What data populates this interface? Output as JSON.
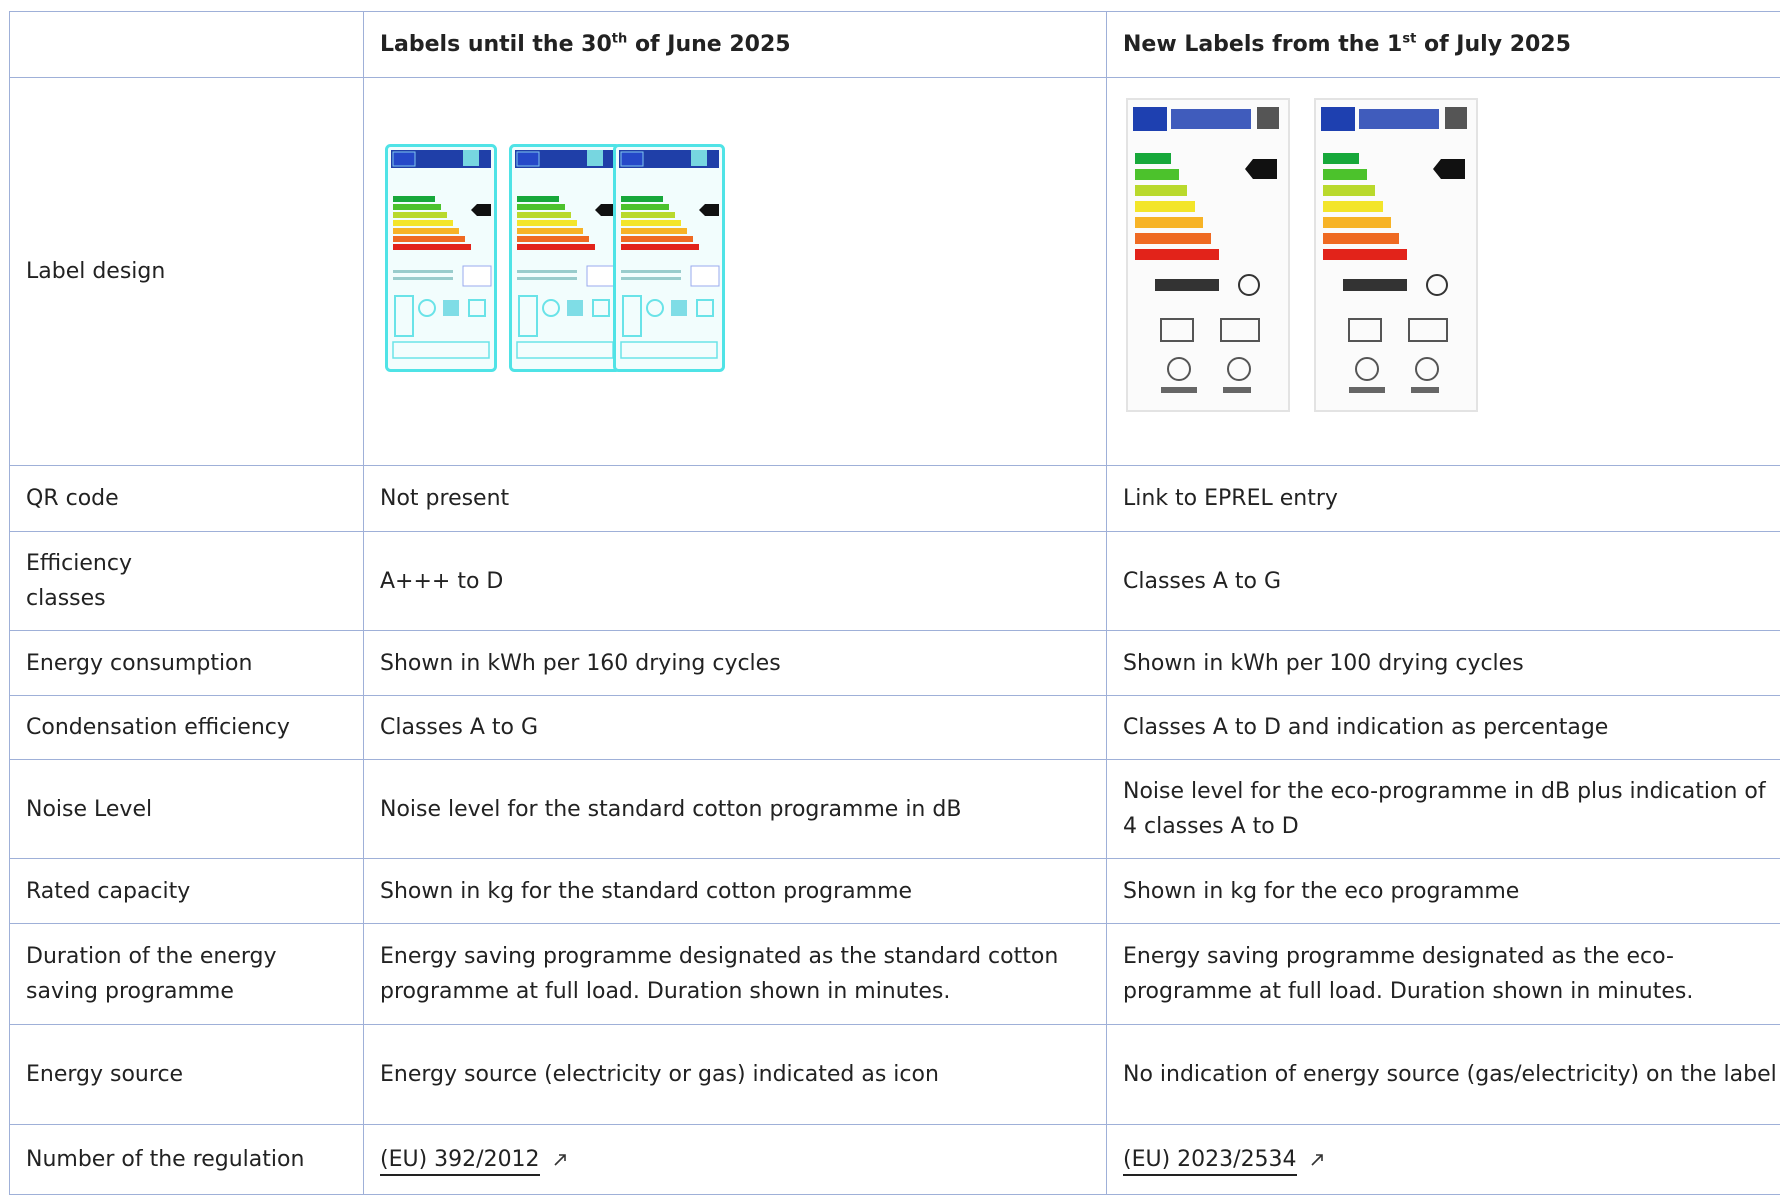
{
  "table": {
    "header": [
      {
        "before": "Labels until the 30",
        "sup": "th",
        "after": " of June 2025"
      },
      {
        "before": "New Labels from the 1",
        "sup": "st",
        "after": " of July 2025"
      }
    ],
    "rows": [
      [
        "Label design"
      ],
      [
        "QR code",
        "Not present",
        "Link to EPREL entry"
      ],
      [
        "Efficiency classes",
        "A+++ to D",
        "Classes A to G"
      ],
      [
        "Energy consumption",
        "Shown in kWh per 160 drying cycles",
        "Shown in kWh per 100 drying cycles"
      ],
      [
        "Condensation efficiency",
        "Classes A to G",
        "Classes A to D and indication as percentage"
      ],
      [
        "Noise Level",
        "Noise level for the standard cotton programme in dB",
        "Noise level for the eco-programme in dB plus indication of 4 classes A to D"
      ],
      [
        "Rated capacity",
        "Shown in kg for the standard cotton programme",
        "Shown in kg for the eco programme"
      ],
      [
        "Duration of the  energy saving programme",
        "Energy saving programme designated as the standard cotton programme at full load. Duration shown in minutes.",
        "Energy saving programme designated as the eco-programme at full load. Duration shown in minutes."
      ],
      [
        "Energy source",
        "Energy source (electricity or gas) indicated as icon",
        "No indication of energy source (gas/electricity) on the label"
      ],
      [
        "Number of the regulation",
        "(EU) 392/2012",
        "(EU) 2023/2534"
      ]
    ]
  }
}
